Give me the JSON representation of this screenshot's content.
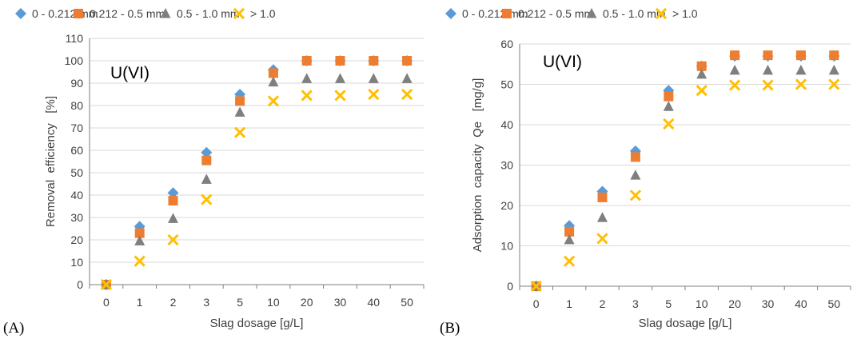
{
  "chart_data": [
    {
      "type": "scatter",
      "panel_label": "(A)",
      "annotation": "U(VI)",
      "xlabel": "Slag dosage [g/L]",
      "ylabel": "Removal  efficiency   [%]",
      "categories": [
        "0",
        "1",
        "2",
        "3",
        "5",
        "10",
        "20",
        "30",
        "40",
        "50"
      ],
      "ylim": [
        0,
        110
      ],
      "yticks": [
        0,
        10,
        20,
        30,
        40,
        50,
        60,
        70,
        80,
        90,
        100,
        110
      ],
      "grid": true,
      "legend_position": "top",
      "series": [
        {
          "name": "0 - 0.212 mm",
          "marker": "diamond",
          "color": "#5B9BD5",
          "values": [
            0,
            26,
            41,
            59,
            85,
            96,
            100,
            100,
            100,
            100
          ]
        },
        {
          "name": "0.212 - 0.5 mm",
          "marker": "square",
          "color": "#ED7D31",
          "values": [
            0,
            23,
            37.5,
            55.5,
            82,
            94.5,
            100,
            100,
            100,
            100
          ]
        },
        {
          "name": "0.5 - 1.0 mm",
          "marker": "triangle",
          "color": "#7F7F7F",
          "values": [
            0,
            19.5,
            29.5,
            47,
            77,
            90.5,
            92,
            92,
            92,
            92
          ]
        },
        {
          "name": "> 1.0",
          "marker": "x",
          "color": "#FFC000",
          "values": [
            0,
            10.5,
            20,
            38,
            68,
            82,
            84.5,
            84.5,
            85,
            85
          ]
        }
      ]
    },
    {
      "type": "scatter",
      "panel_label": "(B)",
      "annotation": "U(VI)",
      "xlabel": "Slag dosage [g/L]",
      "ylabel": "Adsorption  capacity  Qe   [mg/g]",
      "categories": [
        "0",
        "1",
        "2",
        "3",
        "5",
        "10",
        "20",
        "30",
        "40",
        "50"
      ],
      "ylim": [
        0,
        60
      ],
      "yticks": [
        0,
        10,
        20,
        30,
        40,
        50,
        60
      ],
      "grid": true,
      "legend_position": "top",
      "series": [
        {
          "name": "0 - 0.212 mm",
          "marker": "diamond",
          "color": "#5B9BD5",
          "values": [
            0,
            15,
            23.5,
            33.5,
            48.5,
            54.5,
            57,
            57,
            57,
            57
          ]
        },
        {
          "name": "0.212 - 0.5 mm",
          "marker": "square",
          "color": "#ED7D31",
          "values": [
            0,
            13.5,
            22,
            32,
            47,
            54.5,
            57.2,
            57.2,
            57.2,
            57.2
          ]
        },
        {
          "name": "0.5 - 1.0 mm",
          "marker": "triangle",
          "color": "#7F7F7F",
          "values": [
            0,
            11.5,
            17,
            27.5,
            44.5,
            52.5,
            53.5,
            53.5,
            53.5,
            53.5
          ]
        },
        {
          "name": "> 1.0",
          "marker": "x",
          "color": "#FFC000",
          "values": [
            0,
            6.2,
            11.8,
            22.5,
            40.2,
            48.5,
            49.8,
            49.8,
            50,
            50
          ]
        }
      ]
    }
  ]
}
